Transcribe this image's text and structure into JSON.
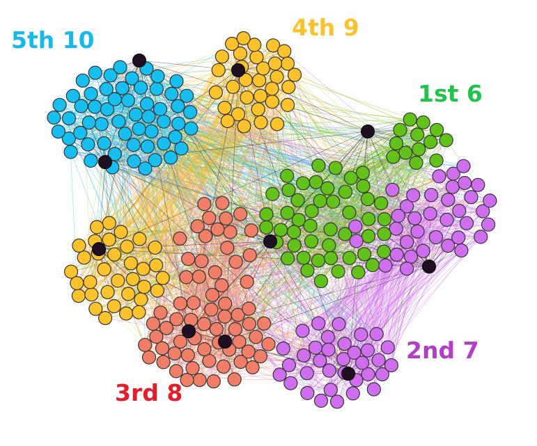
{
  "clusters": [
    {
      "id": "c1",
      "label": "1st 6",
      "color": "#62c21a",
      "label_color": "#22c34a"
    },
    {
      "id": "c2",
      "label": "2nd 7",
      "color": "#cf6ff0",
      "label_color": "#b13ec5"
    },
    {
      "id": "c3",
      "label": "3rd 8",
      "color": "#f17f67",
      "label_color": "#e11f2a"
    },
    {
      "id": "c4",
      "label": "4th 9",
      "color": "#fbc22b",
      "label_color": "#fbc22b"
    },
    {
      "id": "c5",
      "label": "5th 10",
      "color": "#17bff1",
      "label_color": "#17b8ee"
    }
  ],
  "hub_color": "#1f0f22",
  "node_stroke": "#333333"
}
